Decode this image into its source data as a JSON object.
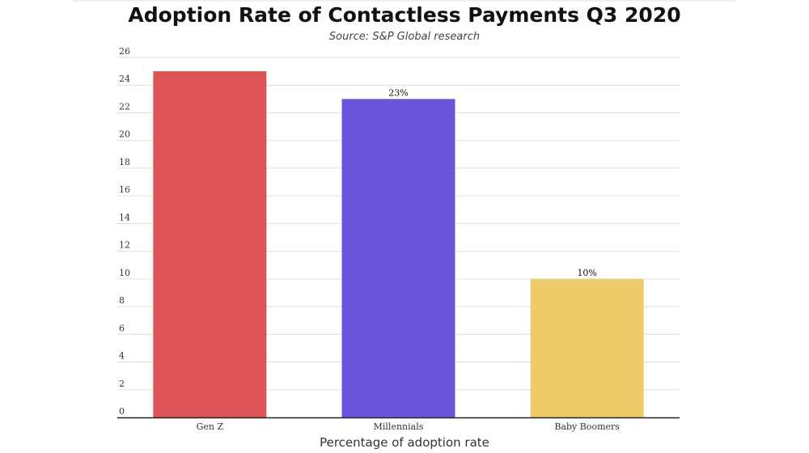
{
  "chart_data": {
    "type": "bar",
    "title": "Adoption Rate of Contactless Payments Q3 2020",
    "subtitle": "Source: S&P Global research",
    "xlabel": "Percentage of adoption rate",
    "ylabel": "",
    "categories": [
      "Gen Z",
      "Millennials",
      "Baby Boomers"
    ],
    "values": [
      25,
      23,
      10
    ],
    "data_labels": [
      "",
      "23%",
      "10%"
    ],
    "colors": [
      "#dc5455",
      "#6c54da",
      "#eecb6a"
    ],
    "ylim": [
      0,
      26
    ],
    "yticks": [
      0,
      2,
      4,
      6,
      8,
      10,
      12,
      14,
      16,
      18,
      20,
      22,
      24,
      26
    ],
    "grid": true,
    "legend": "none"
  }
}
